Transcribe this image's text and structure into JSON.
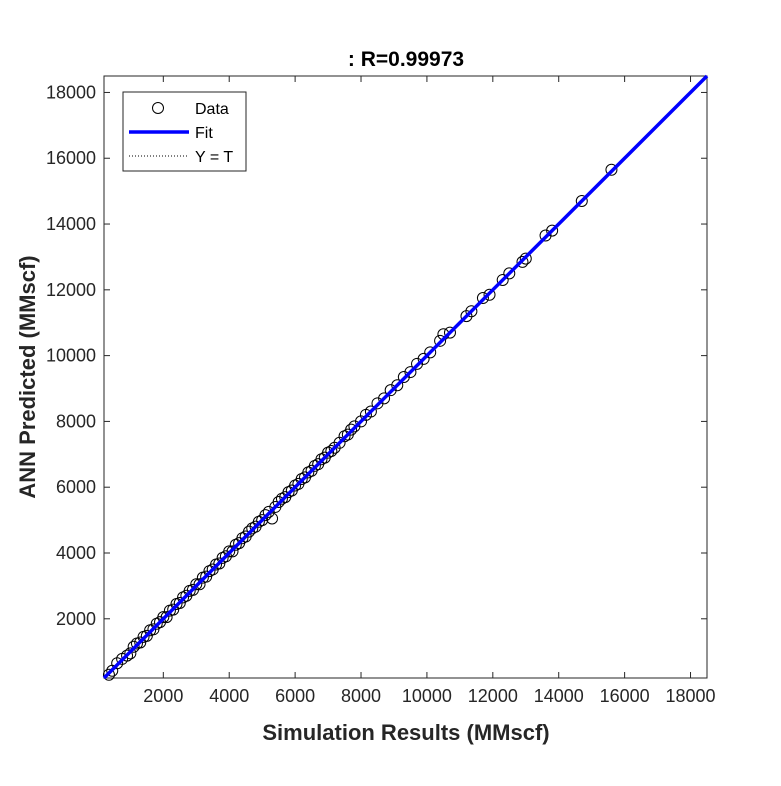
{
  "chart_data": {
    "type": "scatter",
    "title": ": R=0.99973",
    "xlabel": "Simulation Results (MMscf)",
    "ylabel": "ANN Predicted (MMscf)",
    "xlim": [
      200,
      18500
    ],
    "ylim": [
      200,
      18500
    ],
    "xticks": [
      "2000",
      "4000",
      "6000",
      "8000",
      "10000",
      "12000",
      "14000",
      "16000",
      "18000"
    ],
    "yticks": [
      "2000",
      "4000",
      "6000",
      "8000",
      "10000",
      "12000",
      "14000",
      "16000",
      "18000"
    ],
    "grid": false,
    "legend_position": "top-left",
    "legend": [
      "Data",
      "Fit",
      "Y = T"
    ],
    "colors": {
      "data": "#000000",
      "fit": "#0000ff",
      "identity": "#000000"
    },
    "fit_line": {
      "slope": 1.0,
      "intercept": 0,
      "x_range": [
        200,
        18500
      ]
    },
    "identity_line": {
      "slope": 1.0,
      "intercept": 0,
      "x_range": [
        200,
        18500
      ]
    },
    "series": [
      {
        "name": "Data",
        "points": [
          [
            350,
            300
          ],
          [
            450,
            420
          ],
          [
            600,
            650
          ],
          [
            750,
            780
          ],
          [
            900,
            880
          ],
          [
            1000,
            950
          ],
          [
            1100,
            1150
          ],
          [
            1200,
            1250
          ],
          [
            1300,
            1280
          ],
          [
            1400,
            1450
          ],
          [
            1500,
            1480
          ],
          [
            1600,
            1650
          ],
          [
            1700,
            1680
          ],
          [
            1800,
            1850
          ],
          [
            1900,
            1900
          ],
          [
            2000,
            2050
          ],
          [
            2100,
            2050
          ],
          [
            2200,
            2250
          ],
          [
            2300,
            2280
          ],
          [
            2400,
            2450
          ],
          [
            2500,
            2480
          ],
          [
            2600,
            2650
          ],
          [
            2700,
            2700
          ],
          [
            2800,
            2850
          ],
          [
            2900,
            2880
          ],
          [
            3000,
            3050
          ],
          [
            3100,
            3050
          ],
          [
            3200,
            3250
          ],
          [
            3300,
            3280
          ],
          [
            3400,
            3450
          ],
          [
            3500,
            3500
          ],
          [
            3600,
            3650
          ],
          [
            3700,
            3680
          ],
          [
            3800,
            3850
          ],
          [
            3900,
            3900
          ],
          [
            4000,
            4050
          ],
          [
            4100,
            4050
          ],
          [
            4200,
            4250
          ],
          [
            4300,
            4300
          ],
          [
            4400,
            4450
          ],
          [
            4500,
            4500
          ],
          [
            4600,
            4650
          ],
          [
            4700,
            4750
          ],
          [
            4800,
            4800
          ],
          [
            4900,
            4950
          ],
          [
            5000,
            5000
          ],
          [
            5100,
            5150
          ],
          [
            5200,
            5250
          ],
          [
            5300,
            5050
          ],
          [
            5400,
            5400
          ],
          [
            5500,
            5550
          ],
          [
            5600,
            5650
          ],
          [
            5700,
            5700
          ],
          [
            5800,
            5850
          ],
          [
            5900,
            5900
          ],
          [
            6000,
            6050
          ],
          [
            6100,
            6100
          ],
          [
            6200,
            6250
          ],
          [
            6300,
            6300
          ],
          [
            6400,
            6450
          ],
          [
            6500,
            6500
          ],
          [
            6600,
            6650
          ],
          [
            6700,
            6700
          ],
          [
            6800,
            6850
          ],
          [
            6900,
            6900
          ],
          [
            7000,
            7050
          ],
          [
            7100,
            7100
          ],
          [
            7200,
            7200
          ],
          [
            7350,
            7350
          ],
          [
            7500,
            7550
          ],
          [
            7600,
            7600
          ],
          [
            7700,
            7750
          ],
          [
            7800,
            7850
          ],
          [
            8000,
            8000
          ],
          [
            8150,
            8200
          ],
          [
            8300,
            8300
          ],
          [
            8500,
            8550
          ],
          [
            8700,
            8700
          ],
          [
            8900,
            8950
          ],
          [
            9100,
            9100
          ],
          [
            9300,
            9350
          ],
          [
            9500,
            9500
          ],
          [
            9700,
            9750
          ],
          [
            9900,
            9900
          ],
          [
            10100,
            10100
          ],
          [
            10400,
            10450
          ],
          [
            10500,
            10650
          ],
          [
            10700,
            10700
          ],
          [
            11200,
            11200
          ],
          [
            11350,
            11350
          ],
          [
            11700,
            11750
          ],
          [
            11900,
            11850
          ],
          [
            12300,
            12300
          ],
          [
            12500,
            12500
          ],
          [
            12900,
            12850
          ],
          [
            13000,
            12950
          ],
          [
            13600,
            13650
          ],
          [
            13800,
            13800
          ],
          [
            14700,
            14700
          ],
          [
            15600,
            15650
          ]
        ]
      }
    ]
  }
}
